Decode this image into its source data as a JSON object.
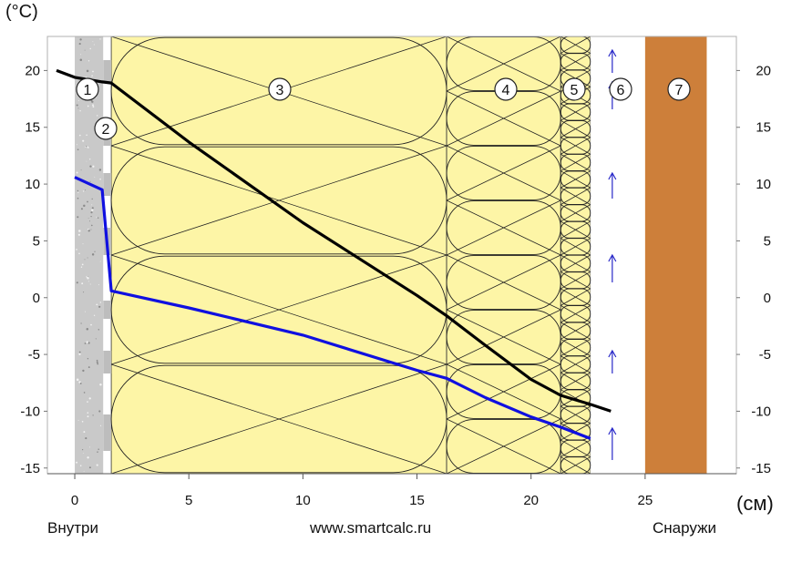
{
  "units": {
    "y": "(°C)",
    "x": "(см)"
  },
  "labels": {
    "inside": "Внутри",
    "site": "www.smartcalc.ru",
    "outside": "Снаружи"
  },
  "colors": {
    "concrete": "#c9c9c9",
    "insulation": "#fdf5a6",
    "gap": "#ffffff",
    "cladding": "#cd7f3a",
    "temperature_line": "#000000",
    "dewpoint_line": "#1010e0",
    "airflow_arrows": "#2828c8"
  },
  "chart_data": {
    "type": "line",
    "xlim": [
      -1.2,
      29
    ],
    "ylim": [
      -15.5,
      23
    ],
    "x_ticks": [
      0,
      5,
      10,
      15,
      20,
      25
    ],
    "y_ticks": [
      20,
      15,
      10,
      5,
      0,
      -5,
      -10,
      -15
    ],
    "layers": [
      {
        "label": "1",
        "x0": 0.0,
        "x1": 1.25,
        "fill": "concrete"
      },
      {
        "label": "2",
        "x0": 1.25,
        "x1": 1.6,
        "fill": "gap"
      },
      {
        "label": "3",
        "x0": 1.6,
        "x1": 16.3,
        "fill": "insulation",
        "pattern": "batt-large"
      },
      {
        "label": "4",
        "x0": 16.3,
        "x1": 21.3,
        "fill": "insulation",
        "pattern": "batt-medium"
      },
      {
        "label": "5",
        "x0": 21.3,
        "x1": 22.6,
        "fill": "insulation",
        "pattern": "batt-small"
      },
      {
        "label": "6",
        "x0": 22.6,
        "x1": 25.0,
        "fill": "gap",
        "pattern": "air-arrows"
      },
      {
        "label": "7",
        "x0": 25.0,
        "x1": 27.7,
        "fill": "cladding"
      }
    ],
    "series": [
      {
        "key": "temperature",
        "x": [
          -0.8,
          0.0,
          1.2,
          1.6,
          5.0,
          10.0,
          15.0,
          16.3,
          18.0,
          20.0,
          21.3,
          22.6,
          23.5
        ],
        "y": [
          20.0,
          19.4,
          19.0,
          18.9,
          13.7,
          6.6,
          0.2,
          -1.6,
          -4.2,
          -7.2,
          -8.6,
          -9.4,
          -10.0
        ]
      },
      {
        "key": "dewpoint",
        "x": [
          0.0,
          1.2,
          1.6,
          5.0,
          10.0,
          15.0,
          16.3,
          18.0,
          20.0,
          21.3,
          22.6
        ],
        "y": [
          10.6,
          9.5,
          0.6,
          -0.9,
          -3.3,
          -6.4,
          -7.1,
          -8.8,
          -10.5,
          -11.4,
          -12.4
        ]
      }
    ]
  }
}
